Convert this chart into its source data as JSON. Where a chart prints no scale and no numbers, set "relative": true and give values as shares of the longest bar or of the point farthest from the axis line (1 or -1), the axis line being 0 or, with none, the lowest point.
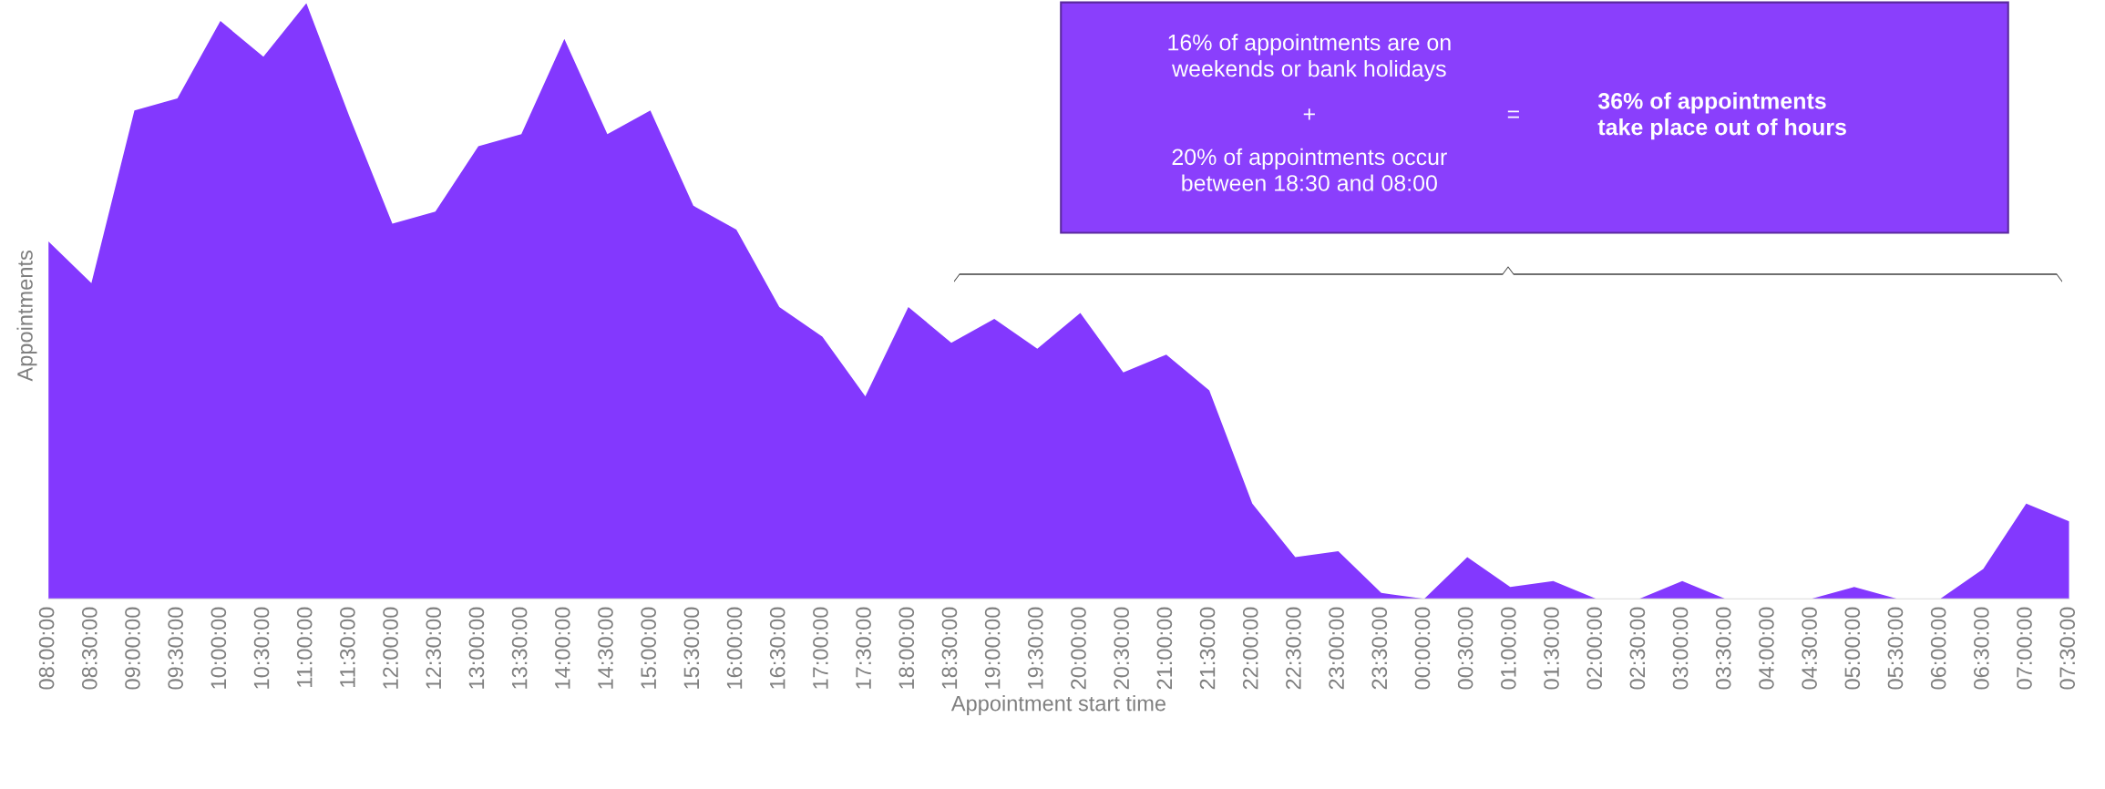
{
  "chart_data": {
    "type": "area",
    "relative": true,
    "xlabel": "Appointment start time",
    "ylabel": "Appointments",
    "categories": [
      "08:00:00",
      "08:30:00",
      "09:00:00",
      "09:30:00",
      "10:00:00",
      "10:30:00",
      "11:00:00",
      "11:30:00",
      "12:00:00",
      "12:30:00",
      "13:00:00",
      "13:30:00",
      "14:00:00",
      "14:30:00",
      "15:00:00",
      "15:30:00",
      "16:00:00",
      "16:30:00",
      "17:00:00",
      "17:30:00",
      "18:00:00",
      "18:30:00",
      "19:00:00",
      "19:30:00",
      "20:00:00",
      "20:30:00",
      "21:00:00",
      "21:30:00",
      "22:00:00",
      "22:30:00",
      "23:00:00",
      "23:30:00",
      "00:00:00",
      "00:30:00",
      "01:00:00",
      "01:30:00",
      "02:00:00",
      "02:30:00",
      "03:00:00",
      "03:30:00",
      "04:00:00",
      "04:30:00",
      "05:00:00",
      "05:30:00",
      "06:00:00",
      "06:30:00",
      "07:00:00",
      "07:30:00"
    ],
    "series": [
      {
        "color": "#8338fe",
        "values": [
          0.6,
          0.53,
          0.82,
          0.84,
          0.97,
          0.91,
          1,
          0.81,
          0.63,
          0.65,
          0.76,
          0.78,
          0.94,
          0.78,
          0.82,
          0.66,
          0.62,
          0.49,
          0.44,
          0.34,
          0.49,
          0.43,
          0.47,
          0.42,
          0.48,
          0.38,
          0.41,
          0.35,
          0.16,
          0.07,
          0.08,
          0.01,
          0.0,
          0.07,
          0.02,
          0.03,
          0.0,
          0.0,
          0.03,
          0.0,
          0.0,
          0.0,
          0.02,
          0.0,
          0.0,
          0.05,
          0.16,
          0.13
        ]
      }
    ],
    "annotations": [
      "16% of appointments are on\nweekends or bank holidays",
      "+",
      "20% of appointments occur\nbetween 18:30 and 08:00",
      "=",
      "36% of appointments\ntake place out of hours"
    ],
    "grid": false,
    "legend": false
  }
}
